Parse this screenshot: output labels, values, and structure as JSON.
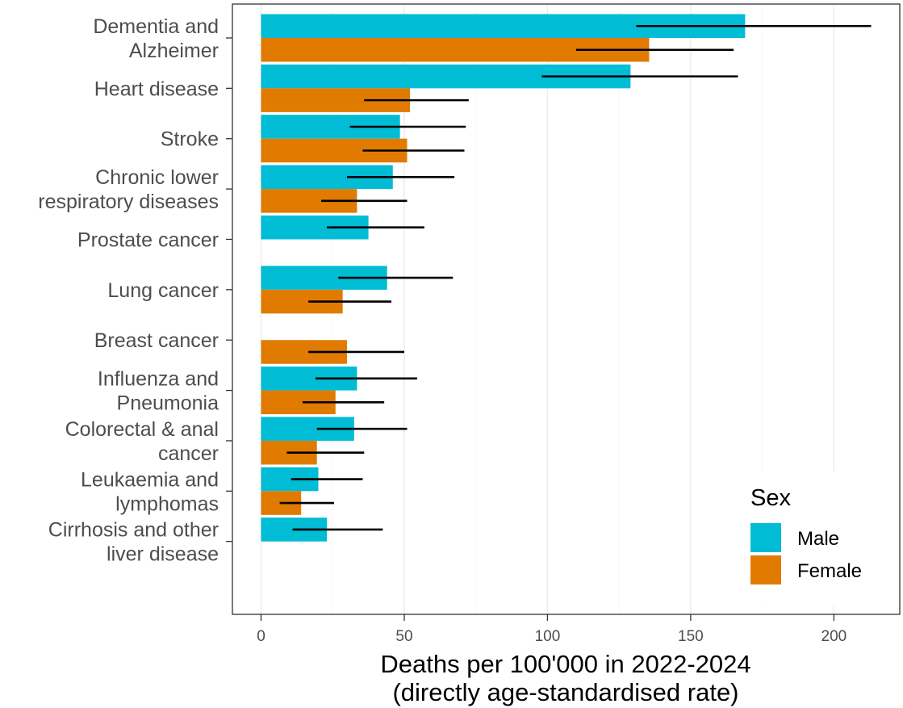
{
  "chart_data": {
    "type": "bar",
    "orientation": "horizontal",
    "categories": [
      [
        "Dementia and",
        "Alzheimer"
      ],
      [
        "Heart disease"
      ],
      [
        "Stroke"
      ],
      [
        "Chronic lower",
        "respiratory diseases"
      ],
      [
        "Prostate cancer"
      ],
      [
        "Lung cancer"
      ],
      [
        "Breast cancer"
      ],
      [
        "Influenza and",
        "Pneumonia"
      ],
      [
        "Colorectal & anal",
        "cancer"
      ],
      [
        "Leukaemia and",
        "lymphomas"
      ],
      [
        "Cirrhosis and other",
        "liver disease"
      ]
    ],
    "series": [
      {
        "name": "Male",
        "color": "#00bcd4",
        "values": [
          169,
          129,
          48.5,
          46,
          37.5,
          44,
          null,
          33.5,
          32.5,
          20,
          23
        ],
        "ci_low": [
          131,
          98,
          31,
          30,
          23,
          27,
          null,
          19,
          19.5,
          10.5,
          11
        ],
        "ci_high": [
          213,
          166.5,
          71.5,
          67.5,
          57,
          67,
          null,
          54.5,
          51,
          35.5,
          42.5
        ]
      },
      {
        "name": "Female",
        "color": "#e07b00",
        "values": [
          135.5,
          52,
          51,
          33.5,
          null,
          28.5,
          30,
          26,
          19.5,
          14,
          null
        ],
        "ci_low": [
          110,
          36,
          35.5,
          21,
          null,
          16.5,
          16.5,
          14.5,
          9,
          6.5,
          null
        ],
        "ci_high": [
          165,
          72.5,
          71,
          51,
          null,
          45.5,
          50,
          43,
          36,
          25.5,
          null
        ]
      }
    ],
    "x_ticks": [
      0,
      50,
      100,
      150,
      200
    ],
    "xlim": [
      -10,
      223
    ],
    "xlabel": [
      "Deaths per 100'000 in 2022-2024",
      "(directly age-standardised rate)"
    ],
    "ylabel": "",
    "title": "",
    "legend": {
      "title": "Sex",
      "position": "bottom-right"
    },
    "grid": true
  }
}
